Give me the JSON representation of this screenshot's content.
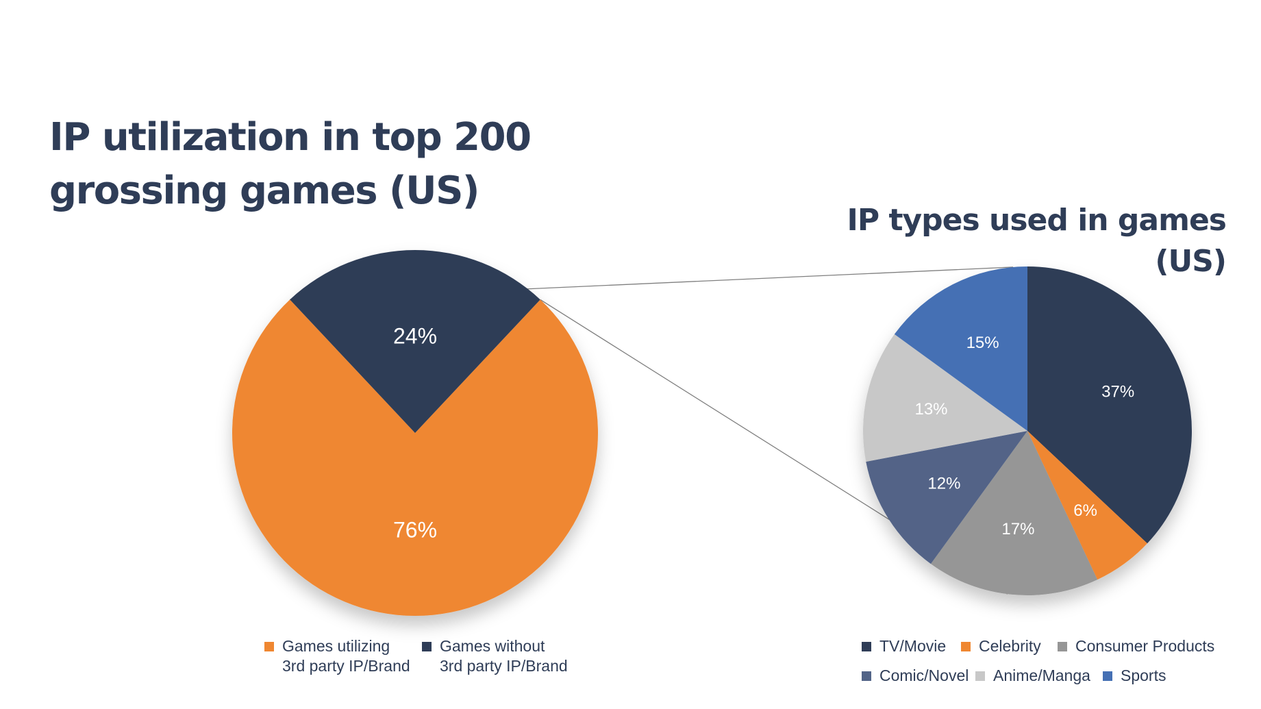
{
  "title": "IP utilization in top 200\ngrossing games (US)",
  "colors": {
    "orange": "#ef8731",
    "navy": "#2f3d57",
    "gray": "#969696",
    "slate": "#526487",
    "light_gray": "#c8c8c8",
    "blue": "#4570b4",
    "connector": "#7f7f7f"
  },
  "chart_data": [
    {
      "type": "pie",
      "title": "IP utilization in top 200\ngrossing games (US)",
      "categories": [
        "Games utilizing\n3rd party IP/Brand",
        "Games without\n3rd party IP/Brand"
      ],
      "values": [
        76,
        24
      ],
      "labels": [
        "76%",
        "24%"
      ],
      "colors": [
        "#ef8731",
        "#2f3d57"
      ],
      "legend": "bottom"
    },
    {
      "type": "pie",
      "title": "IP types used in games (US)",
      "categories": [
        "TV/Movie",
        "Celebrity",
        "Consumer Products",
        "Comic/Novel",
        "Anime/Manga",
        "Sports"
      ],
      "values": [
        37,
        6,
        17,
        12,
        13,
        15
      ],
      "labels": [
        "37%",
        "6%",
        "17%",
        "12%",
        "13%",
        "15%"
      ],
      "colors": [
        "#2f3d57",
        "#ef8731",
        "#969696",
        "#526487",
        "#c8c8c8",
        "#4570b4"
      ],
      "legend": "bottom"
    }
  ]
}
